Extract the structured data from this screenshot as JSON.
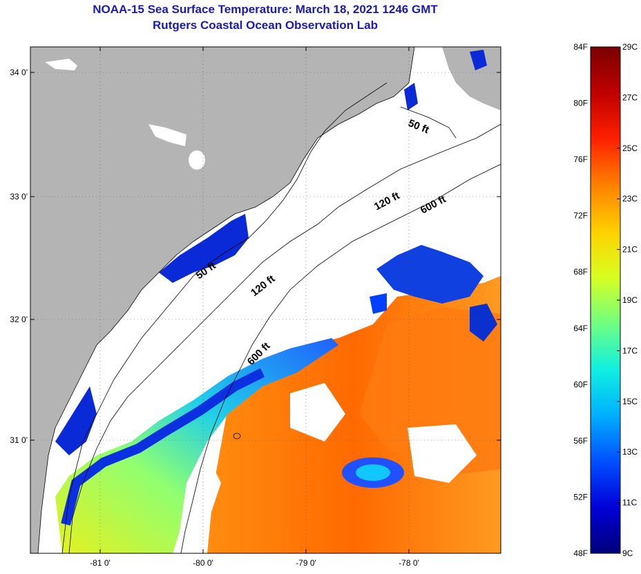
{
  "header": {
    "title": "NOAA-15 Sea Surface Temperature:  March 18, 2021 1246 GMT",
    "subtitle": "Rutgers Coastal Ocean Observation Lab"
  },
  "map": {
    "lon_range": [
      -81.65,
      -77.2
    ],
    "lat_range": [
      30.2,
      34.2
    ],
    "lon_ticks": [
      {
        "value": -81,
        "label": "-81 0'"
      },
      {
        "value": -80,
        "label": "-80 0'"
      },
      {
        "value": -79,
        "label": "-79 0'"
      },
      {
        "value": -78,
        "label": "-78 0'"
      }
    ],
    "lat_ticks": [
      {
        "value": 34,
        "label": "34 0'"
      },
      {
        "value": 33,
        "label": "33 0'"
      },
      {
        "value": 32,
        "label": "32 0'"
      },
      {
        "value": 31,
        "label": "31 0'"
      }
    ],
    "land_color": "#b4b4b4",
    "contour_labels": [
      "50 ft",
      "120 ft",
      "600 ft",
      "50 ft",
      "120 ft",
      "600 ft"
    ]
  },
  "colorbar": {
    "fahrenheit_labels": [
      "84F",
      "80F",
      "76F",
      "72F",
      "68F",
      "64F",
      "60F",
      "56F",
      "52F",
      "48F"
    ],
    "celsius_labels": [
      "29C",
      "27C",
      "25C",
      "23C",
      "21C",
      "19C",
      "17C",
      "15C",
      "13C",
      "11C",
      "9C"
    ],
    "colors": [
      "#00007a",
      "#0000d8",
      "#0050ff",
      "#00b0ff",
      "#10f0e0",
      "#70ff80",
      "#d8ff20",
      "#ffd000",
      "#ff8000",
      "#ff2000",
      "#c00000",
      "#7a0000"
    ]
  }
}
